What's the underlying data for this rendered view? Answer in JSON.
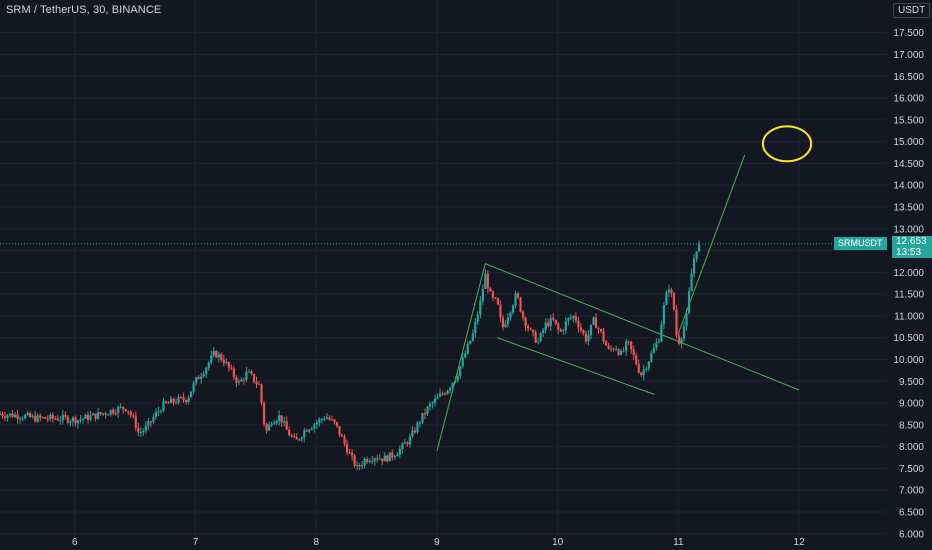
{
  "header": {
    "title": "SRM / TetherUS, 30, BINANCE",
    "currency_label": "USDT"
  },
  "last_price": {
    "symbol": "SRMUSDT",
    "price": "12.653",
    "countdown": "13:53",
    "value": 12.653
  },
  "colors": {
    "background": "#131722",
    "up": "#26a69a",
    "down": "#ef5350",
    "trendline": "#4caf50",
    "highlight": "#f5e61e",
    "axis_text": "#d1d4dc"
  },
  "chart_data": {
    "type": "candlestick",
    "timeframe": "30",
    "x_ticks": [
      "6",
      "7",
      "8",
      "9",
      "10",
      "11",
      "12"
    ],
    "y_ticks": [
      "6.000",
      "6.500",
      "7.000",
      "7.500",
      "8.000",
      "8.500",
      "9.000",
      "9.500",
      "10.000",
      "10.500",
      "11.000",
      "11.500",
      "12.000",
      "12.500",
      "13.000",
      "13.500",
      "14.000",
      "14.500",
      "15.000",
      "15.500",
      "16.000",
      "16.500",
      "17.000",
      "17.500"
    ],
    "ylim": [
      5.95,
      18.25
    ],
    "xlim": [
      5.38,
      12.72
    ],
    "grid": true,
    "price_path": [
      [
        5.38,
        8.75
      ],
      [
        5.55,
        8.72
      ],
      [
        5.7,
        8.65
      ],
      [
        5.9,
        8.65
      ],
      [
        6.05,
        8.62
      ],
      [
        6.2,
        8.72
      ],
      [
        6.35,
        8.85
      ],
      [
        6.45,
        8.9
      ],
      [
        6.52,
        8.55
      ],
      [
        6.55,
        8.3
      ],
      [
        6.62,
        8.45
      ],
      [
        6.68,
        8.7
      ],
      [
        6.75,
        8.95
      ],
      [
        6.85,
        9.05
      ],
      [
        6.95,
        9.1
      ],
      [
        7.02,
        9.5
      ],
      [
        7.1,
        9.8
      ],
      [
        7.18,
        10.15
      ],
      [
        7.25,
        10.0
      ],
      [
        7.32,
        9.7
      ],
      [
        7.38,
        9.45
      ],
      [
        7.45,
        9.7
      ],
      [
        7.55,
        9.4
      ],
      [
        7.6,
        8.3
      ],
      [
        7.65,
        8.6
      ],
      [
        7.72,
        8.7
      ],
      [
        7.78,
        8.35
      ],
      [
        7.85,
        8.1
      ],
      [
        7.93,
        8.4
      ],
      [
        8.02,
        8.55
      ],
      [
        8.1,
        8.7
      ],
      [
        8.18,
        8.5
      ],
      [
        8.25,
        8.1
      ],
      [
        8.3,
        7.8
      ],
      [
        8.36,
        7.5
      ],
      [
        8.42,
        7.7
      ],
      [
        8.5,
        7.78
      ],
      [
        8.58,
        7.72
      ],
      [
        8.65,
        7.8
      ],
      [
        8.72,
        7.95
      ],
      [
        8.8,
        8.2
      ],
      [
        8.88,
        8.6
      ],
      [
        8.95,
        8.9
      ],
      [
        9.02,
        9.1
      ],
      [
        9.1,
        9.3
      ],
      [
        9.18,
        9.6
      ],
      [
        9.25,
        10.1
      ],
      [
        9.32,
        10.6
      ],
      [
        9.38,
        11.3
      ],
      [
        9.42,
        11.95
      ],
      [
        9.47,
        11.4
      ],
      [
        9.52,
        11.3
      ],
      [
        9.56,
        10.7
      ],
      [
        9.62,
        11.1
      ],
      [
        9.68,
        11.5
      ],
      [
        9.73,
        11.0
      ],
      [
        9.8,
        10.6
      ],
      [
        9.86,
        10.4
      ],
      [
        9.92,
        10.8
      ],
      [
        9.98,
        10.9
      ],
      [
        10.04,
        10.6
      ],
      [
        10.1,
        10.9
      ],
      [
        10.16,
        11.0
      ],
      [
        10.21,
        10.7
      ],
      [
        10.26,
        10.45
      ],
      [
        10.32,
        10.9
      ],
      [
        10.38,
        10.6
      ],
      [
        10.44,
        10.2
      ],
      [
        10.5,
        10.3
      ],
      [
        10.55,
        10.1
      ],
      [
        10.6,
        10.4
      ],
      [
        10.66,
        10.0
      ],
      [
        10.71,
        9.65
      ],
      [
        10.76,
        9.9
      ],
      [
        10.81,
        10.2
      ],
      [
        10.86,
        10.5
      ],
      [
        10.9,
        11.2
      ],
      [
        10.94,
        11.7
      ],
      [
        10.98,
        11.3
      ],
      [
        11.0,
        10.6
      ],
      [
        11.03,
        10.4
      ],
      [
        11.06,
        10.7
      ],
      [
        11.09,
        11.0
      ],
      [
        11.12,
        11.8
      ],
      [
        11.15,
        12.3
      ],
      [
        11.17,
        12.55
      ],
      [
        11.19,
        12.653
      ]
    ],
    "annotations": [
      {
        "type": "trendline",
        "from": [
          9.0,
          7.9
        ],
        "to": [
          9.4,
          12.2
        ]
      },
      {
        "type": "trendline",
        "from": [
          9.4,
          12.2
        ],
        "to": [
          12.0,
          9.3
        ]
      },
      {
        "type": "trendline",
        "from": [
          9.5,
          10.5
        ],
        "to": [
          10.8,
          9.2
        ]
      },
      {
        "type": "trendline",
        "from": [
          11.0,
          10.6
        ],
        "to": [
          11.55,
          14.7
        ]
      },
      {
        "type": "ellipse",
        "center": [
          11.9,
          14.95
        ],
        "rx": 0.2,
        "ry": 0.4
      }
    ]
  }
}
